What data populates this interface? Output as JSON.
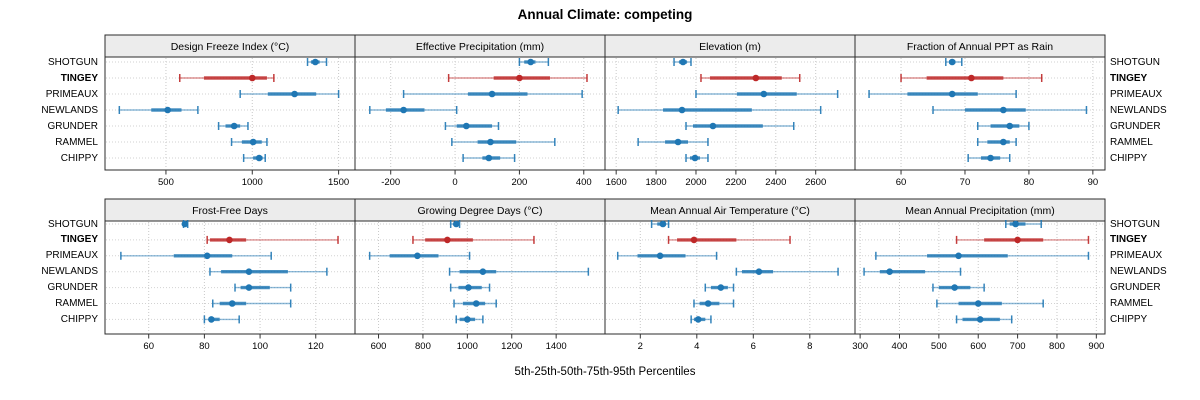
{
  "title": "Annual Climate: competing",
  "xlabel": "5th-25th-50th-75th-95th Percentiles",
  "sites": [
    "SHOTGUN",
    "TINGEY",
    "PRIMEAUX",
    "NEWLANDS",
    "GRUNDER",
    "RAMMEL",
    "CHIPPY"
  ],
  "highlight_site": "TINGEY",
  "colors": {
    "series_blue": "#1F77B4",
    "series_red": "#BE2828",
    "strip_bg": "#ECECEC",
    "panel_border": "#2B2B2B",
    "grid": "#C8C8C8",
    "tick": "#333333",
    "text": "#000000"
  },
  "chart_data": {
    "type": "dot-whisker",
    "note": "Each row shows 5th-25th-50th-75th-95th percentiles per site; dot = median",
    "percentile_labels": [
      "5th",
      "25th",
      "50th",
      "75th",
      "95th"
    ],
    "panels": [
      {
        "title": "Design Freeze Index (°C)",
        "row": 0,
        "col": 0,
        "xlim": [
          147,
          1595
        ],
        "ticks": [
          500,
          1000,
          1500
        ],
        "series": [
          [
            1320,
            1340,
            1365,
            1390,
            1430
          ],
          [
            580,
            720,
            1000,
            1085,
            1125
          ],
          [
            930,
            1090,
            1245,
            1370,
            1500
          ],
          [
            230,
            415,
            510,
            590,
            685
          ],
          [
            805,
            845,
            895,
            930,
            975
          ],
          [
            880,
            940,
            1005,
            1055,
            1085
          ],
          [
            950,
            1005,
            1040,
            1060,
            1075
          ]
        ]
      },
      {
        "title": "Effective Precipitation (mm)",
        "row": 0,
        "col": 1,
        "xlim": [
          -311,
          466
        ],
        "ticks": [
          -200,
          0,
          200,
          400
        ],
        "series": [
          [
            200,
            215,
            235,
            250,
            290
          ],
          [
            -20,
            120,
            200,
            295,
            410
          ],
          [
            -160,
            40,
            115,
            225,
            395
          ],
          [
            -265,
            -215,
            -160,
            -95,
            5
          ],
          [
            -30,
            5,
            35,
            115,
            135
          ],
          [
            -10,
            70,
            110,
            190,
            310
          ],
          [
            25,
            85,
            105,
            140,
            185
          ]
        ]
      },
      {
        "title": "Elevation (m)",
        "row": 0,
        "col": 2,
        "xlim": [
          1544,
          2797
        ],
        "ticks": [
          1600,
          1800,
          2000,
          2200,
          2400,
          2600
        ],
        "series": [
          [
            1890,
            1915,
            1935,
            1955,
            1975
          ],
          [
            2025,
            2070,
            2300,
            2430,
            2520
          ],
          [
            2000,
            2205,
            2340,
            2505,
            2710
          ],
          [
            1610,
            1835,
            1930,
            2280,
            2625
          ],
          [
            1950,
            1985,
            2085,
            2335,
            2490
          ],
          [
            1710,
            1845,
            1910,
            1960,
            2060
          ],
          [
            1950,
            1970,
            1995,
            2020,
            2060
          ]
        ]
      },
      {
        "title": "Fraction of Annual PPT as Rain",
        "row": 0,
        "col": 3,
        "xlim": [
          52.8,
          91.9
        ],
        "ticks": [
          60,
          70,
          80,
          90
        ],
        "series": [
          [
            67,
            67.5,
            68,
            68.5,
            69.5
          ],
          [
            60,
            64,
            71,
            76,
            82
          ],
          [
            55,
            61,
            68,
            72,
            78
          ],
          [
            65,
            70,
            76,
            79.5,
            89
          ],
          [
            72,
            74,
            77,
            78.5,
            80
          ],
          [
            72,
            73.5,
            76,
            77,
            78
          ],
          [
            70.5,
            72.5,
            74,
            75.5,
            77
          ]
        ]
      },
      {
        "title": "Frost-Free Days",
        "row": 1,
        "col": 0,
        "xlim": [
          44.3,
          134.1
        ],
        "ticks": [
          60,
          80,
          100,
          120
        ],
        "series": [
          [
            72.5,
            73,
            73,
            73.5,
            74
          ],
          [
            81,
            82,
            89,
            95,
            128
          ],
          [
            50,
            69,
            81,
            90,
            104
          ],
          [
            82,
            86,
            96,
            110,
            124
          ],
          [
            91,
            93,
            96,
            103.5,
            111
          ],
          [
            83,
            85.5,
            90,
            95,
            111
          ],
          [
            80,
            81.5,
            82.5,
            85.5,
            92.5
          ]
        ]
      },
      {
        "title": "Growing Degree Days (°C)",
        "row": 1,
        "col": 1,
        "xlim": [
          494,
          1620
        ],
        "ticks": [
          600,
          800,
          1000,
          1200,
          1400
        ],
        "series": [
          [
            925,
            940,
            950,
            960,
            965
          ],
          [
            755,
            810,
            910,
            1025,
            1300
          ],
          [
            560,
            650,
            775,
            870,
            1010
          ],
          [
            920,
            965,
            1070,
            1130,
            1545
          ],
          [
            925,
            960,
            1005,
            1065,
            1100
          ],
          [
            940,
            980,
            1040,
            1080,
            1130
          ],
          [
            950,
            965,
            1000,
            1035,
            1070
          ]
        ]
      },
      {
        "title": "Mean Annual Air Temperature (°C)",
        "row": 1,
        "col": 2,
        "xlim": [
          0.75,
          9.6
        ],
        "ticks": [
          2,
          4,
          6,
          8
        ],
        "series": [
          [
            2.4,
            2.6,
            2.8,
            2.9,
            3.0
          ],
          [
            3.0,
            3.3,
            3.9,
            5.4,
            7.3
          ],
          [
            1.2,
            1.9,
            2.7,
            3.6,
            4.7
          ],
          [
            5.4,
            5.6,
            6.2,
            6.7,
            9.0
          ],
          [
            4.3,
            4.5,
            4.85,
            5.1,
            5.3
          ],
          [
            3.9,
            4.1,
            4.4,
            4.8,
            5.3
          ],
          [
            3.8,
            3.9,
            4.05,
            4.3,
            4.5
          ]
        ]
      },
      {
        "title": "Mean Annual Precipitation (mm)",
        "row": 1,
        "col": 3,
        "xlim": [
          287,
          922
        ],
        "ticks": [
          300,
          400,
          500,
          600,
          700,
          800,
          900
        ],
        "series": [
          [
            670,
            680,
            695,
            720,
            760
          ],
          [
            545,
            615,
            700,
            765,
            880
          ],
          [
            340,
            470,
            550,
            675,
            880
          ],
          [
            310,
            350,
            375,
            465,
            555
          ],
          [
            485,
            500,
            540,
            580,
            615
          ],
          [
            495,
            550,
            600,
            660,
            765
          ],
          [
            545,
            560,
            605,
            655,
            685
          ]
        ]
      }
    ]
  }
}
